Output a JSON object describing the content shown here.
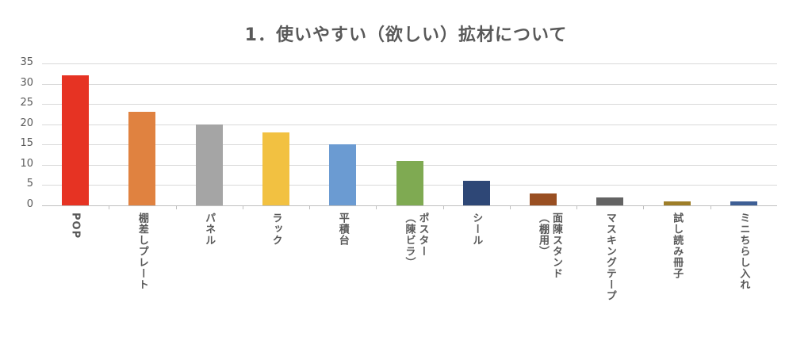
{
  "chart_data": {
    "type": "bar",
    "title": "1．使いやすい（欲しい）拡材について",
    "xlabel": "",
    "ylabel": "",
    "ylim": [
      0,
      35
    ],
    "yticks": [
      0,
      5,
      10,
      15,
      20,
      25,
      30,
      35
    ],
    "grid": true,
    "legend": null,
    "categories": [
      "POP",
      "棚差しプレート",
      "パネル",
      "ラック",
      "平積台",
      "ポスター（陳ビラ）",
      "シール",
      "面陳スタンド（棚用）",
      "マスキングテープ",
      "試し読み冊子",
      "ミニちらし入れ"
    ],
    "label_lines": [
      [
        "POP"
      ],
      [
        "棚差しプレート"
      ],
      [
        "パネル"
      ],
      [
        "ラック"
      ],
      [
        "平積台"
      ],
      [
        "ポスター",
        "（陳ビラ）"
      ],
      [
        "シール"
      ],
      [
        "面陳スタンド",
        "（棚用）"
      ],
      [
        "マスキングテープ"
      ],
      [
        "試し読み冊子"
      ],
      [
        "ミニちらし入れ"
      ]
    ],
    "values": [
      32,
      23,
      20,
      18,
      15,
      11,
      6,
      3,
      2,
      1,
      1
    ],
    "colors": [
      "#e63323",
      "#e08240",
      "#a5a5a5",
      "#f2c141",
      "#6b9bd2",
      "#7faa52",
      "#2e4776",
      "#994f22",
      "#636363",
      "#9e7e28",
      "#3e5f95"
    ]
  }
}
